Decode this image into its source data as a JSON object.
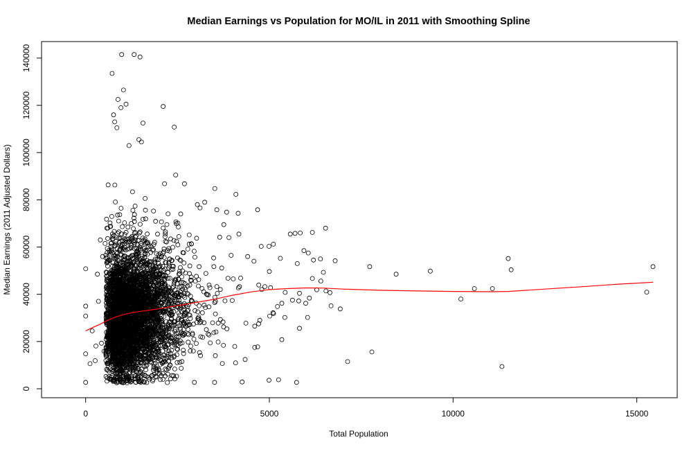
{
  "chart_data": {
    "type": "scatter",
    "title": "Median Earnings vs Population for MO/IL in 2011 with Smoothing Spline",
    "xlabel": "Total Population",
    "ylabel": "Median Earnings (2011 Adjusted Dollars)",
    "xlim": [
      -1200,
      16100
    ],
    "ylim": [
      -3800,
      147000
    ],
    "x_ticks": [
      0,
      5000,
      10000,
      15000
    ],
    "x_tick_labels": [
      "0",
      "5000",
      "10000",
      "15000"
    ],
    "y_ticks": [
      0,
      20000,
      40000,
      60000,
      80000,
      100000,
      120000,
      140000
    ],
    "y_tick_labels": [
      "0",
      "20000",
      "40000",
      "60000",
      "80000",
      "100000",
      "120000",
      "140000"
    ],
    "grid": false,
    "legend": "none",
    "series": [
      {
        "kind": "points",
        "marker": "open-circle",
        "color": "#000000",
        "approx_count": 4500,
        "visible_points": [
          [
            980,
            141500
          ],
          [
            1320,
            141500
          ],
          [
            1480,
            140500
          ],
          [
            720,
            133500
          ],
          [
            1030,
            126500
          ],
          [
            880,
            122500
          ],
          [
            1100,
            120500
          ],
          [
            2110,
            119500
          ],
          [
            960,
            119000
          ],
          [
            760,
            116000
          ],
          [
            2410,
            110800
          ],
          [
            1560,
            112500
          ],
          [
            790,
            113000
          ],
          [
            850,
            110500
          ],
          [
            1450,
            105500
          ],
          [
            1520,
            104500
          ],
          [
            1180,
            103000
          ],
          [
            2450,
            90500
          ],
          [
            2690,
            86800
          ],
          [
            4090,
            82300
          ],
          [
            3240,
            79000
          ],
          [
            3040,
            78000
          ],
          [
            4680,
            75800
          ],
          [
            3570,
            75800
          ],
          [
            4150,
            74300
          ],
          [
            3760,
            69500
          ],
          [
            6530,
            68000
          ],
          [
            3900,
            64000
          ],
          [
            4170,
            65500
          ],
          [
            5570,
            65500
          ],
          [
            5840,
            66000
          ],
          [
            5700,
            65800
          ],
          [
            6170,
            66200
          ],
          [
            5110,
            61200
          ],
          [
            4990,
            60300
          ],
          [
            5940,
            58500
          ],
          [
            6060,
            57500
          ],
          [
            4780,
            60300
          ],
          [
            3960,
            56500
          ],
          [
            4410,
            56000
          ],
          [
            4580,
            54000
          ],
          [
            5300,
            55200
          ],
          [
            6390,
            55000
          ],
          [
            6200,
            54500
          ],
          [
            6790,
            54200
          ],
          [
            5760,
            53000
          ],
          [
            7730,
            51700
          ],
          [
            9380,
            49800
          ],
          [
            8450,
            48500
          ],
          [
            15440,
            51700
          ],
          [
            11500,
            55100
          ],
          [
            11580,
            50400
          ],
          [
            6470,
            49300
          ],
          [
            6170,
            46700
          ],
          [
            6400,
            45600
          ],
          [
            15270,
            40900
          ],
          [
            10580,
            42400
          ],
          [
            11070,
            42400
          ],
          [
            10210,
            38000
          ],
          [
            6090,
            38400
          ],
          [
            6540,
            41400
          ],
          [
            6650,
            40700
          ],
          [
            6290,
            41900
          ],
          [
            5820,
            40400
          ],
          [
            5430,
            40800
          ],
          [
            5630,
            37500
          ],
          [
            5800,
            37200
          ],
          [
            5990,
            36200
          ],
          [
            5220,
            34800
          ],
          [
            5340,
            36200
          ],
          [
            5100,
            32200
          ],
          [
            5010,
            30800
          ],
          [
            5420,
            30200
          ],
          [
            6930,
            33800
          ],
          [
            6040,
            30200
          ],
          [
            6680,
            35100
          ],
          [
            5820,
            25600
          ],
          [
            5340,
            20800
          ],
          [
            4710,
            27500
          ],
          [
            4600,
            26500
          ],
          [
            4740,
            29000
          ],
          [
            7790,
            15600
          ],
          [
            7130,
            11500
          ],
          [
            11330,
            9400
          ],
          [
            4600,
            17500
          ],
          [
            4340,
            12400
          ],
          [
            4080,
            11000
          ],
          [
            3720,
            10700
          ],
          [
            3530,
            14000
          ],
          [
            5250,
            3800
          ],
          [
            4990,
            3600
          ],
          [
            5740,
            2700
          ],
          [
            4260,
            2900
          ],
          [
            3510,
            2700
          ],
          [
            2960,
            2700
          ],
          [
            0,
            50800
          ],
          [
            0,
            35000
          ],
          [
            0,
            30800
          ],
          [
            0,
            14800
          ],
          [
            0,
            2700
          ],
          [
            120,
            10600
          ],
          [
            180,
            24500
          ],
          [
            260,
            11900
          ],
          [
            320,
            48500
          ],
          [
            400,
            63000
          ],
          [
            460,
            56000
          ],
          [
            530,
            61500
          ],
          [
            570,
            41500
          ],
          [
            350,
            37000
          ],
          [
            430,
            19300
          ],
          [
            500,
            15900
          ],
          [
            280,
            18100
          ]
        ]
      },
      {
        "name": "",
        "kind": "smoothing-spline",
        "color": "#ff0000",
        "points": [
          [
            0,
            24500
          ],
          [
            200,
            26000
          ],
          [
            400,
            27400
          ],
          [
            600,
            29000
          ],
          [
            800,
            30300
          ],
          [
            1000,
            31300
          ],
          [
            1250,
            32200
          ],
          [
            1500,
            32800
          ],
          [
            1750,
            33300
          ],
          [
            2000,
            33900
          ],
          [
            2500,
            35200
          ],
          [
            3000,
            36500
          ],
          [
            3500,
            37900
          ],
          [
            4000,
            39600
          ],
          [
            4500,
            41000
          ],
          [
            5000,
            42000
          ],
          [
            5500,
            42400
          ],
          [
            6000,
            42700
          ],
          [
            6500,
            42600
          ],
          [
            7000,
            42200
          ],
          [
            8000,
            41700
          ],
          [
            9000,
            41400
          ],
          [
            10000,
            41200
          ],
          [
            11000,
            41100
          ],
          [
            11500,
            41200
          ],
          [
            12500,
            42200
          ],
          [
            13500,
            43200
          ],
          [
            14500,
            44300
          ],
          [
            15440,
            45100
          ]
        ]
      }
    ]
  }
}
